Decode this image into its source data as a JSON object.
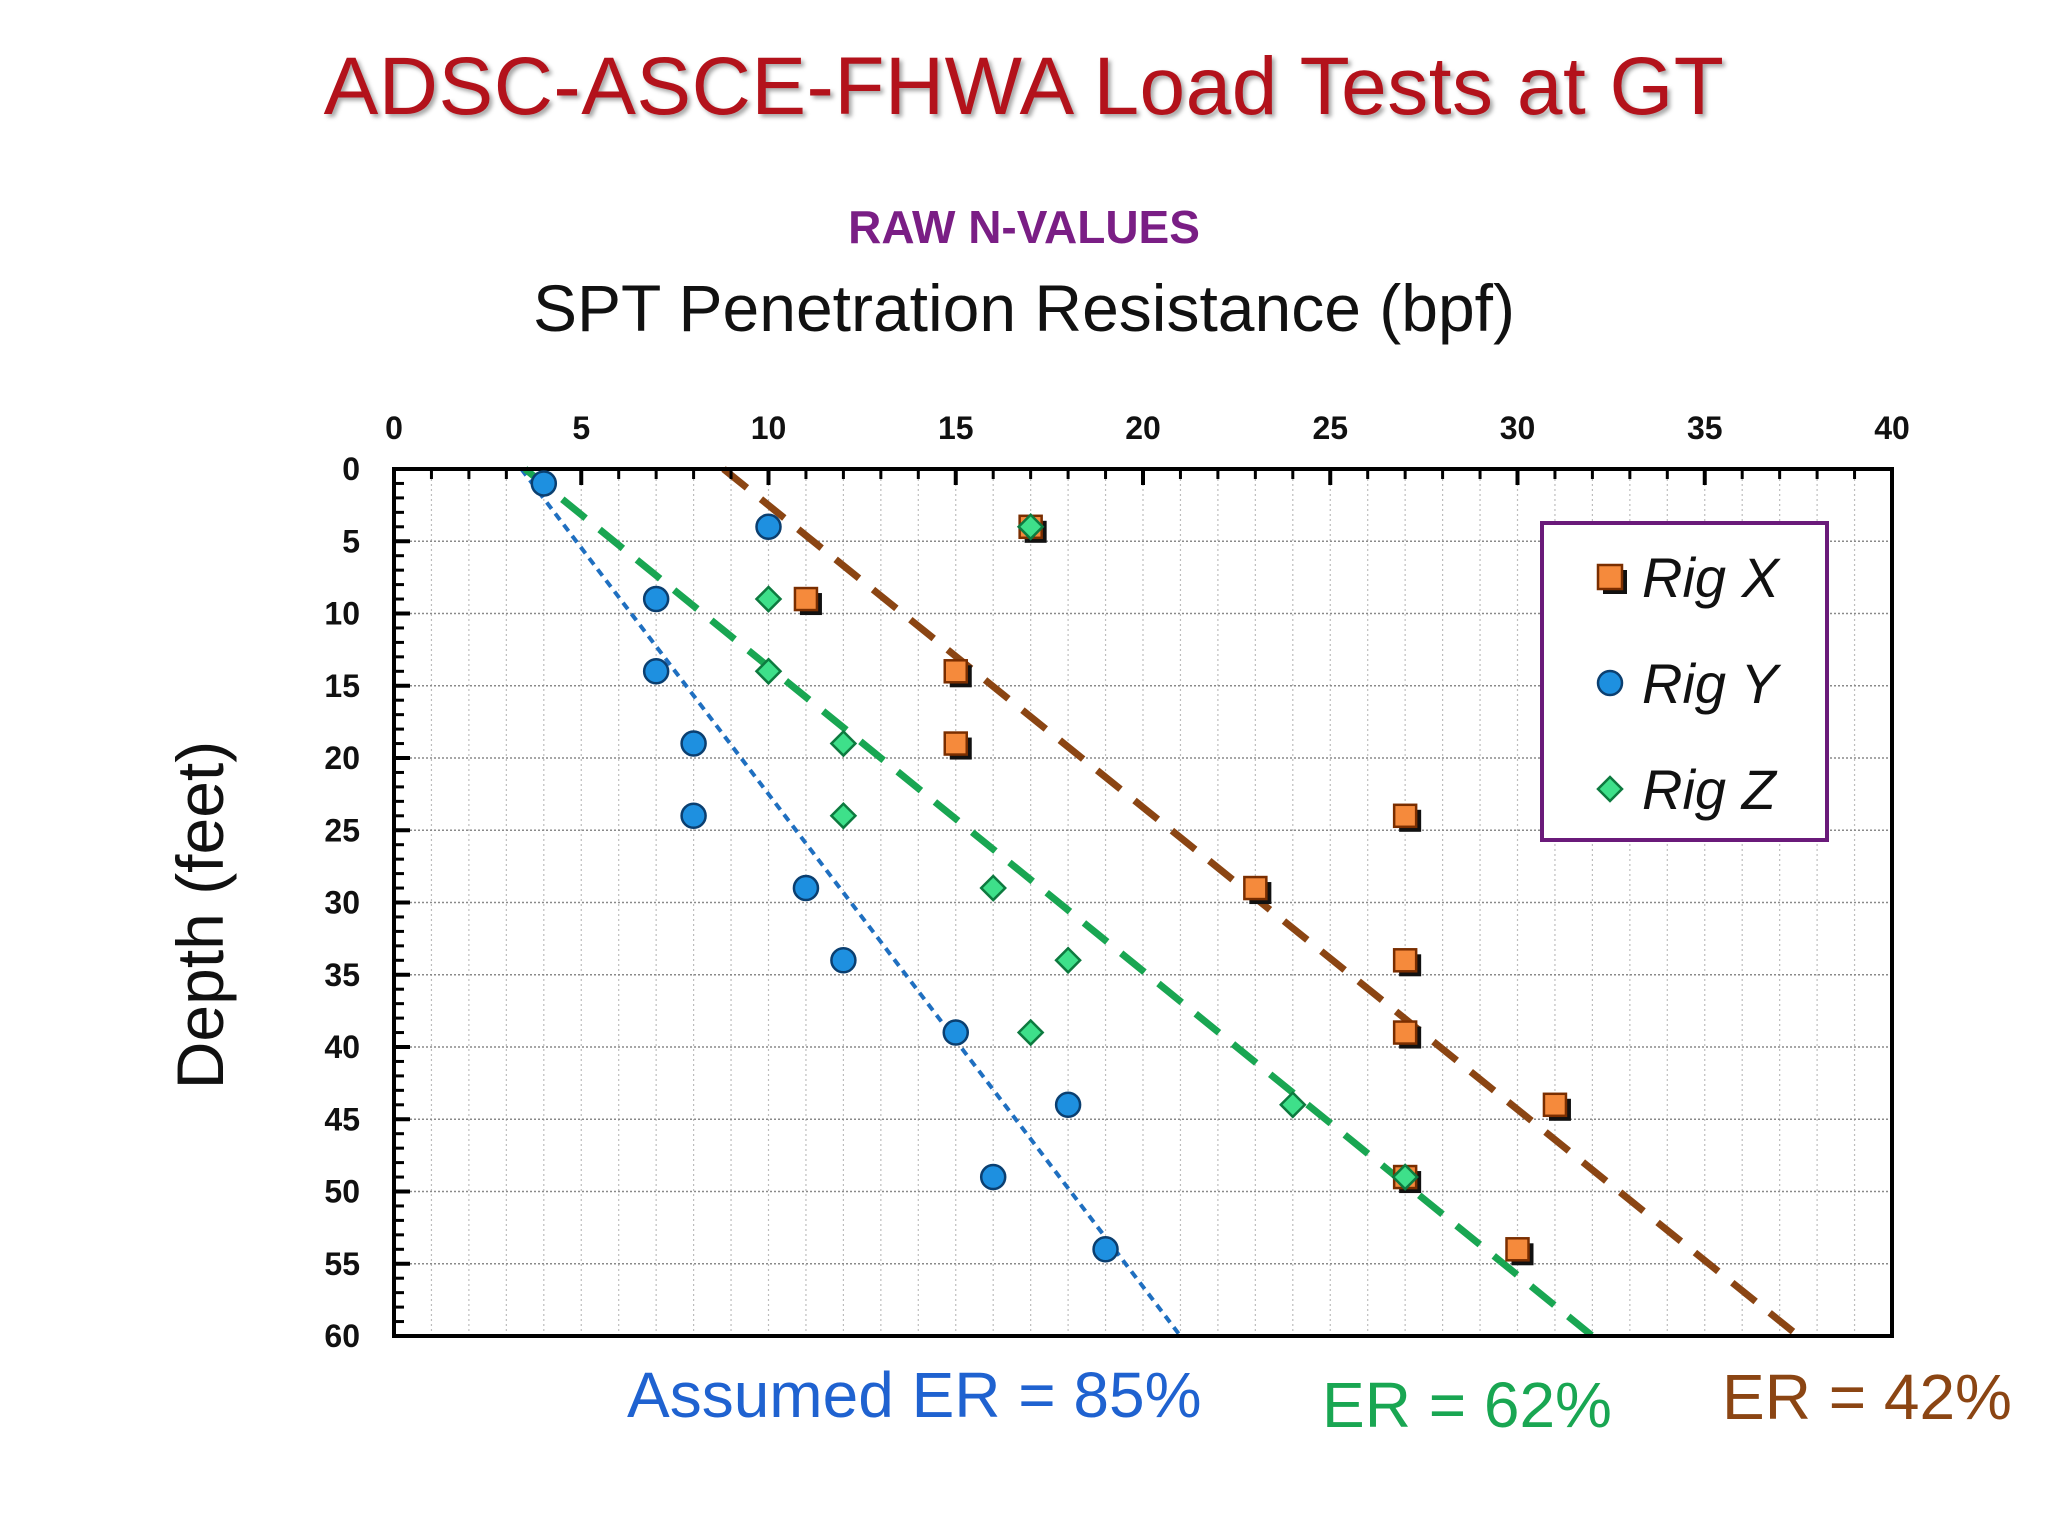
{
  "slide": {
    "title": "ADSC-ASCE-FHWA Load Tests at GT",
    "subtitle": "RAW N-VALUES"
  },
  "chart_data": {
    "type": "scatter",
    "title": "",
    "xlabel": "SPT Penetration Resistance (bpf)",
    "ylabel": "Depth (feet)",
    "xlim": [
      0,
      40
    ],
    "ylim": [
      60,
      0
    ],
    "x_ticks": [
      0,
      5,
      10,
      15,
      20,
      25,
      30,
      35,
      40
    ],
    "y_ticks": [
      0,
      5,
      10,
      15,
      20,
      25,
      30,
      35,
      40,
      45,
      50,
      55,
      60
    ],
    "x_axis_position": "top",
    "y_axis_inverted": true,
    "grid": true,
    "legend_position": "top-right",
    "series": [
      {
        "name": "Rig X",
        "marker": "square",
        "color": "#f58a3c",
        "points": [
          [
            17,
            4
          ],
          [
            11,
            9
          ],
          [
            15,
            14
          ],
          [
            15,
            19
          ],
          [
            27,
            24
          ],
          [
            23,
            29
          ],
          [
            27,
            34
          ],
          [
            27,
            39
          ],
          [
            31,
            44
          ],
          [
            27,
            49
          ],
          [
            30,
            54
          ]
        ]
      },
      {
        "name": "Rig Y",
        "marker": "circle",
        "color": "#1e90e0",
        "points": [
          [
            4,
            1
          ],
          [
            10,
            4
          ],
          [
            7,
            9
          ],
          [
            7,
            14
          ],
          [
            8,
            19
          ],
          [
            8,
            24
          ],
          [
            11,
            29
          ],
          [
            12,
            34
          ],
          [
            15,
            39
          ],
          [
            18,
            44
          ],
          [
            16,
            49
          ],
          [
            19,
            54
          ]
        ]
      },
      {
        "name": "Rig Z",
        "marker": "diamond",
        "color": "#3ee08a",
        "points": [
          [
            17,
            4
          ],
          [
            10,
            9
          ],
          [
            10,
            14
          ],
          [
            12,
            19
          ],
          [
            12,
            24
          ],
          [
            16,
            29
          ],
          [
            18,
            34
          ],
          [
            17,
            39
          ],
          [
            24,
            44
          ],
          [
            27,
            49
          ]
        ]
      }
    ],
    "trend_lines": [
      {
        "label": "Assumed ER = 85%",
        "color": "#1f6fc0",
        "dash": "short",
        "start": [
          3.4,
          0
        ],
        "end": [
          21,
          60
        ]
      },
      {
        "label": "ER = 62%",
        "color": "#19a652",
        "dash": "long",
        "start": [
          3.5,
          0
        ],
        "end": [
          32,
          60
        ]
      },
      {
        "label": "ER = 42%",
        "color": "#8b4513",
        "dash": "long",
        "start": [
          8.8,
          0
        ],
        "end": [
          37.5,
          60
        ]
      }
    ]
  }
}
